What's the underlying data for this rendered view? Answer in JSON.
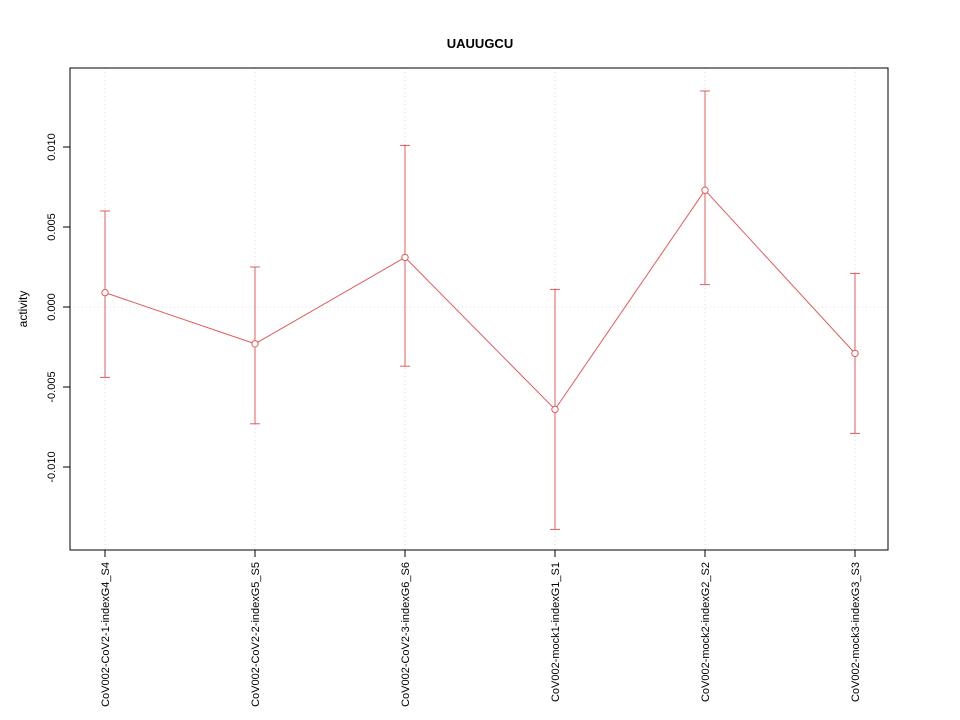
{
  "chart_data": {
    "type": "line",
    "title": "UAUUGCU",
    "xlabel": "",
    "ylabel": "activity",
    "categories": [
      "CoV002-CoV2-1-indexG4_S4",
      "CoV002-CoV2-2-indexG5_S5",
      "CoV002-CoV2-3-indexG6_S6",
      "CoV002-mock1-indexG1_S1",
      "CoV002-mock2-indexG2_S2",
      "CoV002-mock3-indexG3_S3"
    ],
    "series": [
      {
        "name": "activity",
        "values": [
          0.0009,
          -0.0023,
          0.0031,
          -0.0064,
          0.0073,
          -0.0029
        ],
        "err_low": [
          -0.0044,
          -0.0073,
          -0.0037,
          -0.0139,
          0.0014,
          -0.0079
        ],
        "err_high": [
          0.006,
          0.0025,
          0.0101,
          0.0011,
          0.0135,
          0.0021
        ]
      }
    ],
    "yticks": [
      -0.01,
      -0.005,
      0.0,
      0.005,
      0.01
    ],
    "ytick_labels": [
      "-0.010",
      "-0.005",
      "0.000",
      "0.005",
      "0.010"
    ],
    "ylim": [
      -0.0152,
      0.0149
    ],
    "grid": {
      "vertical_at_categories": true,
      "horizontal_at_zero": true
    },
    "legend": "none",
    "colors": {
      "series": "#e05c5c",
      "grid": "#d9d9d9",
      "axis": "#000000",
      "text": "#000000"
    }
  }
}
